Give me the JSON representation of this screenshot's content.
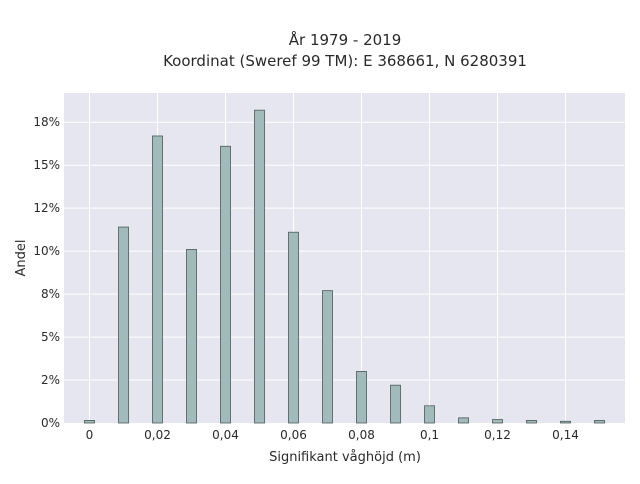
{
  "chart_data": {
    "type": "bar",
    "title": "År 1979 - 2019",
    "subtitle": "Koordinat (Sweref 99 TM): E 368661, N 6280391",
    "xlabel": "Signifikant våghöjd (m)",
    "ylabel": "Andel",
    "x_ticks": [
      "0",
      "0,02",
      "0,04",
      "0,06",
      "0,08",
      "0,1",
      "0,12",
      "0,14"
    ],
    "y_ticks": [
      "0%",
      "2%",
      "5%",
      "8%",
      "10%",
      "12%",
      "15%",
      "18%"
    ],
    "y_tick_values": [
      0,
      2.5,
      5,
      7.5,
      10,
      12.5,
      15,
      17.5
    ],
    "xlim": [
      -0.0075,
      0.1575
    ],
    "ylim": [
      0,
      19.2
    ],
    "x": [
      0.0,
      0.01,
      0.02,
      0.03,
      0.04,
      0.05,
      0.06,
      0.07,
      0.08,
      0.09,
      0.1,
      0.11,
      0.12,
      0.13,
      0.14,
      0.15
    ],
    "values": [
      0.15,
      11.4,
      16.7,
      10.1,
      16.1,
      18.2,
      11.1,
      7.7,
      3.0,
      2.2,
      1.0,
      0.3,
      0.2,
      0.15,
      0.1,
      0.15
    ],
    "bar_color": "#a3babd",
    "bar_edge_color": "#4a5a58",
    "background_color": "#e5e6f0",
    "grid": true
  }
}
